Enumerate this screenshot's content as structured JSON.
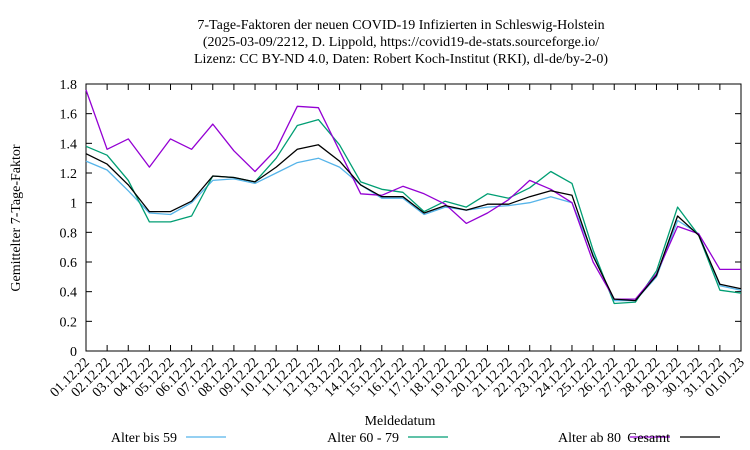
{
  "chart_data": {
    "type": "line",
    "title": [
      "7-Tage-Faktoren der neuen COVID-19 Infizierten in Schleswig-Holstein",
      "(2025-03-09/2212, D. Lippold, https://covid19-de-stats.sourceforge.io/",
      "Lizenz: CC BY-ND 4.0, Daten: Robert Koch-Institut (RKI), dl-de/by-2-0)"
    ],
    "xlabel": "Meldedatum",
    "ylabel": "Gemittelter 7-Tage-Faktor",
    "ylim": [
      0,
      1.8
    ],
    "yticks": [
      "0",
      "0.2",
      "0.4",
      "0.6",
      "0.8",
      "1",
      "1.2",
      "1.4",
      "1.6",
      "1.8"
    ],
    "categories": [
      "01.12.22",
      "02.12.22",
      "03.12.22",
      "04.12.22",
      "05.12.22",
      "06.12.22",
      "07.12.22",
      "08.12.22",
      "09.12.22",
      "10.12.22",
      "11.12.22",
      "12.12.22",
      "13.12.22",
      "14.12.22",
      "15.12.22",
      "16.12.22",
      "17.12.22",
      "18.12.22",
      "19.12.22",
      "20.12.22",
      "21.12.22",
      "22.12.22",
      "23.12.22",
      "24.12.22",
      "25.12.22",
      "26.12.22",
      "27.12.22",
      "28.12.22",
      "29.12.22",
      "30.12.22",
      "31.12.22",
      "01.01.23"
    ],
    "grid": false,
    "legend_position": "bottom",
    "series": [
      {
        "name": "Alter bis 59",
        "color": "#56b4e9",
        "values": [
          1.28,
          1.22,
          1.08,
          0.93,
          0.92,
          1.0,
          1.15,
          1.16,
          1.13,
          1.2,
          1.27,
          1.3,
          1.24,
          1.12,
          1.03,
          1.03,
          0.92,
          0.97,
          0.95,
          0.97,
          0.98,
          1.0,
          1.04,
          1.0,
          0.65,
          0.34,
          0.34,
          0.5,
          0.88,
          0.79,
          0.44,
          0.41
        ]
      },
      {
        "name": "Alter 60 - 79",
        "color": "#009e73",
        "values": [
          1.38,
          1.32,
          1.15,
          0.87,
          0.87,
          0.91,
          1.18,
          1.17,
          1.14,
          1.3,
          1.52,
          1.56,
          1.39,
          1.14,
          1.09,
          1.07,
          0.94,
          1.01,
          0.97,
          1.06,
          1.03,
          1.1,
          1.21,
          1.13,
          0.68,
          0.32,
          0.33,
          0.54,
          0.97,
          0.78,
          0.41,
          0.39
        ]
      },
      {
        "name": "Alter ab 80",
        "color": "#9400d3",
        "values": [
          1.76,
          1.36,
          1.43,
          1.24,
          1.43,
          1.36,
          1.53,
          1.35,
          1.21,
          1.36,
          1.65,
          1.64,
          1.35,
          1.06,
          1.05,
          1.11,
          1.06,
          0.99,
          0.86,
          0.93,
          1.02,
          1.15,
          1.09,
          1.0,
          0.6,
          0.35,
          0.35,
          0.52,
          0.84,
          0.79,
          0.55,
          0.55
        ]
      },
      {
        "name": "Gesamt",
        "color": "#000000",
        "values": [
          1.33,
          1.26,
          1.12,
          0.94,
          0.94,
          1.01,
          1.18,
          1.17,
          1.14,
          1.24,
          1.36,
          1.39,
          1.28,
          1.12,
          1.04,
          1.04,
          0.93,
          0.98,
          0.95,
          0.99,
          0.99,
          1.04,
          1.08,
          1.05,
          0.64,
          0.35,
          0.34,
          0.51,
          0.91,
          0.78,
          0.45,
          0.42
        ]
      }
    ]
  }
}
